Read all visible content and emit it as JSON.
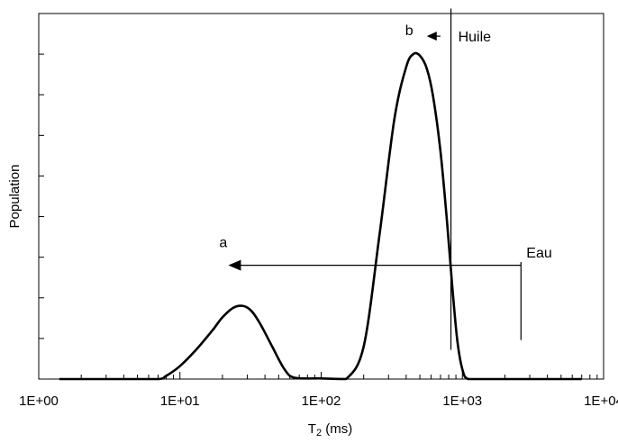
{
  "chart_data": {
    "type": "line",
    "title": "",
    "xlabel": "T",
    "xlabel_sub": "2",
    "xlabel_unit": " (ms)",
    "ylabel": "Population",
    "x_scale": "log",
    "xlim": [
      1,
      10000
    ],
    "ylim": [
      0,
      1
    ],
    "x_ticks": [
      1,
      10,
      100,
      1000,
      10000
    ],
    "x_tick_labels": [
      "1E+00",
      "1E+01",
      "1E+02",
      "1E+03",
      "1E+04"
    ],
    "y_tick_count": 9,
    "y_tick_labels_shown": false,
    "grid": false,
    "legend": "none",
    "series": [
      {
        "color": "#000000",
        "x": [
          1.4,
          2,
          4,
          7,
          8,
          10,
          13,
          17,
          20,
          24,
          28,
          32,
          37,
          45,
          55,
          65,
          100,
          120,
          150,
          200,
          260,
          330,
          400,
          450,
          500,
          560,
          620,
          700,
          780,
          850,
          920,
          1000,
          1100,
          1500,
          3000,
          7000
        ],
        "y": [
          0.0,
          0.0,
          0.0,
          0.0,
          0.01,
          0.04,
          0.09,
          0.15,
          0.19,
          0.22,
          0.225,
          0.21,
          0.17,
          0.1,
          0.03,
          0.004,
          0.002,
          0.001,
          0.0,
          0.1,
          0.45,
          0.8,
          0.96,
          1.0,
          0.995,
          0.955,
          0.87,
          0.7,
          0.48,
          0.28,
          0.12,
          0.03,
          0.0,
          0.0,
          0.0,
          0.0
        ]
      }
    ],
    "annotations": {
      "huile": {
        "label": "Huile",
        "x": 830,
        "y_top": 1.14,
        "y_bottom": 0.09
      },
      "b": {
        "label": "b",
        "arrow_from_x": 700,
        "arrow_to_x": 560,
        "y": 1.055
      },
      "eau": {
        "label": "Eau",
        "x": 2600,
        "y_top": 0.36,
        "y_bottom": 0.12
      },
      "a": {
        "label": "a",
        "arrow_from_x": 2600,
        "arrow_to_x": 22,
        "y": 0.35
      }
    }
  }
}
